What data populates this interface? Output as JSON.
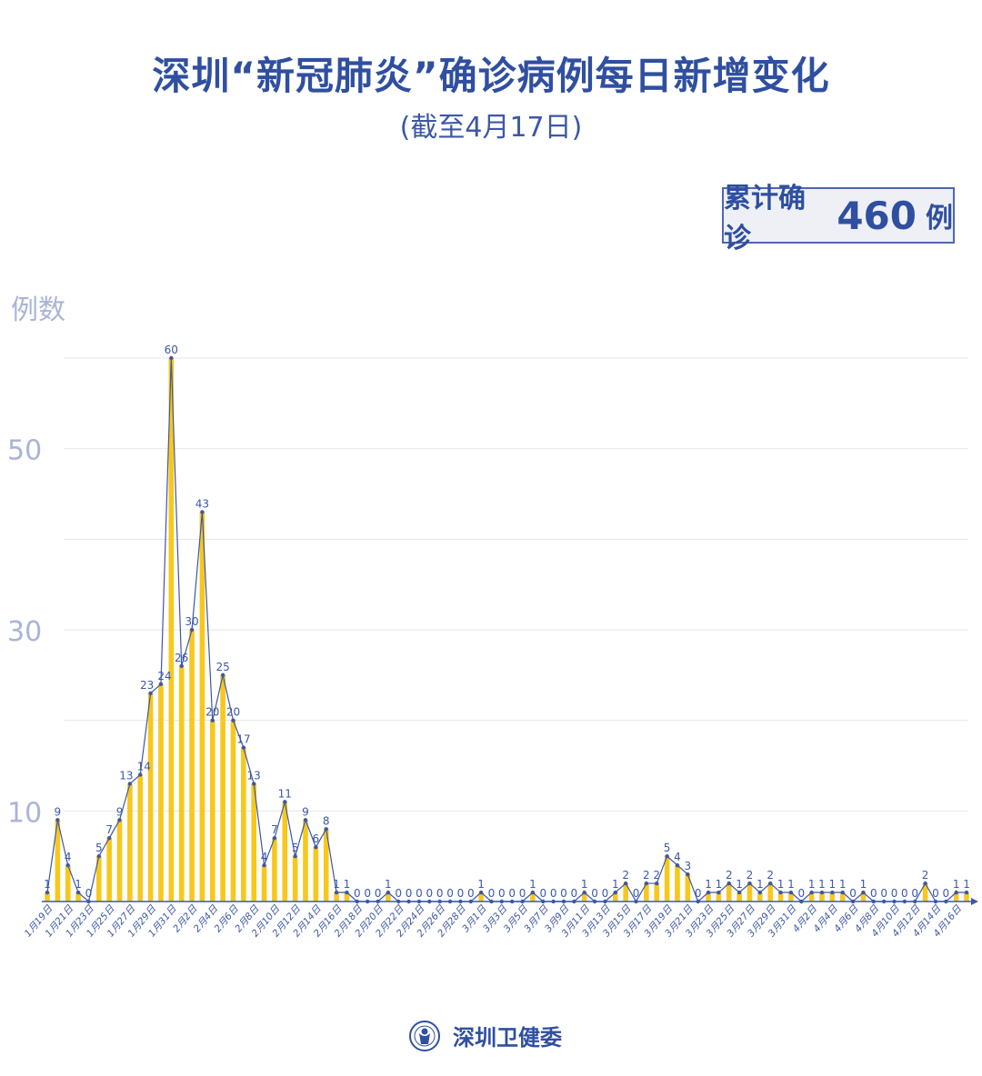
{
  "title": "深圳“新冠肺炎”确诊病例每日新增变化",
  "subtitle": "(截至4月17日)",
  "total": {
    "label": "累计确诊",
    "value": "460",
    "unit": "例"
  },
  "footer": {
    "org": "深圳卫健委",
    "logo_icon": "shenzhen-health-commission-logo"
  },
  "colors": {
    "title": "#2f4fa0",
    "bar": "#f7c81c",
    "line": "#3d57a8",
    "axis_tick": "#a9b4d8",
    "grid": "#e6e6e6"
  },
  "chart_data": {
    "type": "bar",
    "ylabel": "例数",
    "ylim": [
      0,
      60
    ],
    "y_ticks": [
      10,
      30,
      50
    ],
    "grid": true,
    "x_tick_labels": [
      "1月19日",
      "1月21日",
      "1月23日",
      "1月25日",
      "1月27日",
      "1月29日",
      "1月31日",
      "2月2日",
      "2月4日",
      "2月6日",
      "2月8日",
      "2月10日",
      "2月12日",
      "2月14日",
      "2月16日",
      "2月18日",
      "2月20日",
      "2月22日",
      "2月24日",
      "2月26日",
      "2月28日",
      "3月1日",
      "3月3日",
      "3月5日",
      "3月7日",
      "3月9日",
      "3月11日",
      "3月13日",
      "3月15日",
      "3月17日",
      "3月19日",
      "3月21日",
      "3月23日",
      "3月25日",
      "3月27日",
      "3月29日",
      "3月31日",
      "4月2日",
      "4月4日",
      "4月6日",
      "4月8日",
      "4月10日",
      "4月12日",
      "4月14日",
      "4月16日"
    ],
    "values": [
      1,
      9,
      4,
      1,
      0,
      5,
      7,
      9,
      13,
      14,
      23,
      24,
      60,
      26,
      30,
      43,
      20,
      25,
      20,
      17,
      13,
      4,
      7,
      11,
      5,
      9,
      6,
      8,
      1,
      1,
      0,
      0,
      0,
      1,
      0,
      0,
      0,
      0,
      0,
      0,
      0,
      0,
      1,
      0,
      0,
      0,
      0,
      1,
      0,
      0,
      0,
      0,
      1,
      0,
      0,
      1,
      2,
      0,
      2,
      2,
      5,
      4,
      3,
      0,
      1,
      1,
      2,
      1,
      2,
      1,
      2,
      1,
      1,
      0,
      1,
      1,
      1,
      1,
      0,
      1,
      0,
      0,
      0,
      0,
      0,
      2,
      0,
      0,
      1,
      1
    ],
    "overlay_line": true
  }
}
